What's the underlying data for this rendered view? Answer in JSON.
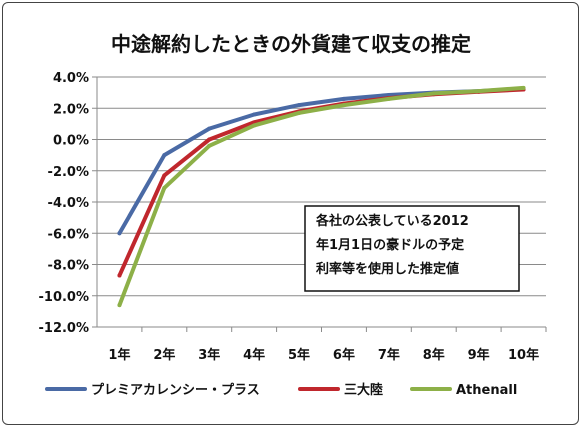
{
  "chart_data": {
    "type": "line",
    "title": "中途解約したときの外貨建て収支の推定",
    "categories": [
      "1年",
      "2年",
      "3年",
      "4年",
      "5年",
      "6年",
      "7年",
      "8年",
      "9年",
      "10年"
    ],
    "y_ticks": [
      "4.0%",
      "2.0%",
      "0.0%",
      "-2.0%",
      "-4.0%",
      "-6.0%",
      "-8.0%",
      "-10.0%",
      "-12.0%"
    ],
    "ylim": [
      -12,
      4
    ],
    "grid": true,
    "legend_position": "bottom",
    "series": [
      {
        "name": "プレミアカレンシー・プラス",
        "color": "#4a6aa5",
        "values": [
          -6.0,
          -1.0,
          0.7,
          1.6,
          2.2,
          2.6,
          2.85,
          3.0,
          3.1,
          3.25
        ]
      },
      {
        "name": "三大陸",
        "color": "#c0272d",
        "values": [
          -8.7,
          -2.3,
          0.0,
          1.1,
          1.8,
          2.3,
          2.65,
          2.9,
          3.05,
          3.2
        ]
      },
      {
        "name": "Athenall",
        "color": "#8db048",
        "values": [
          -10.6,
          -3.1,
          -0.4,
          0.9,
          1.7,
          2.2,
          2.6,
          2.95,
          3.1,
          3.3
        ]
      }
    ],
    "annotation": [
      "各社の公表している2012",
      "年1月1日の豪ドルの予定",
      "利率等を使用した推定値"
    ]
  }
}
